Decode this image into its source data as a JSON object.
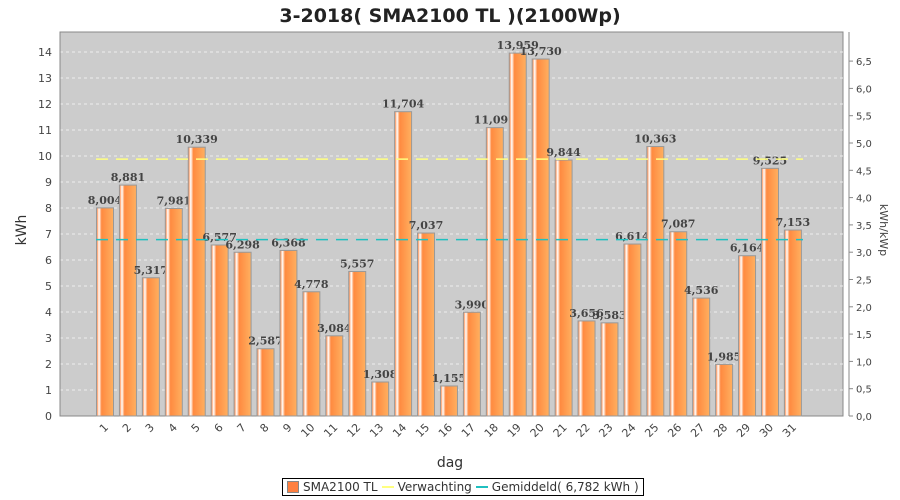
{
  "chart_data": {
    "type": "bar",
    "title": "3-2018( SMA2100 TL )(2100Wp)",
    "xlabel": "dag",
    "ylabel": "kWh",
    "y2label": "kWh/kWp",
    "ylim": [
      0,
      14.7
    ],
    "yticks": [
      0,
      1,
      2,
      3,
      4,
      5,
      6,
      7,
      8,
      9,
      10,
      11,
      12,
      13,
      14
    ],
    "y2ticks": [
      "0,0",
      "0,5",
      "1,0",
      "1,5",
      "2,0",
      "2,5",
      "3,0",
      "3,5",
      "4,0",
      "4,5",
      "5,0",
      "5,5",
      "6,0",
      "6,5"
    ],
    "y2ratio": 2.1,
    "grid": true,
    "categories": [
      "1",
      "2",
      "3",
      "4",
      "5",
      "6",
      "7",
      "8",
      "9",
      "10",
      "11",
      "12",
      "13",
      "14",
      "15",
      "16",
      "17",
      "18",
      "19",
      "20",
      "21",
      "22",
      "23",
      "24",
      "25",
      "26",
      "27",
      "28",
      "29",
      "30",
      "31"
    ],
    "series": [
      {
        "name": "SMA2100 TL",
        "color": "#ff8040",
        "values": [
          8.004,
          8.881,
          5.317,
          7.981,
          10.339,
          6.577,
          6.298,
          2.587,
          6.368,
          4.778,
          3.084,
          5.557,
          1.308,
          11.704,
          7.037,
          1.155,
          3.99,
          11.091,
          13.959,
          13.73,
          9.844,
          3.656,
          3.583,
          6.614,
          10.363,
          7.087,
          4.536,
          1.985,
          6.164,
          9.525,
          7.153
        ],
        "labels": [
          "8,004",
          "8,881",
          "5,317",
          "7,981",
          "10,339",
          "6,577",
          "6,298",
          "2,587",
          "6,368",
          "4,778",
          "3,084",
          "5,557",
          "1,308",
          "11,704",
          "7,037",
          "1,155",
          "3,990",
          "11,091",
          "13,959",
          "13,730",
          "9,844",
          "3,656",
          "3,583",
          "6,614",
          "10,363",
          "7,087",
          "4,536",
          "1,985",
          "6,164",
          "9,525",
          "7,153"
        ]
      },
      {
        "name": "Verwachting",
        "type": "line",
        "color": "#ffff80",
        "value": 9.88
      },
      {
        "name": "Gemiddeld( 6,782 kWh )",
        "type": "line",
        "color": "#20c0c0",
        "value": 6.782
      }
    ],
    "legend_position": "bottom"
  }
}
